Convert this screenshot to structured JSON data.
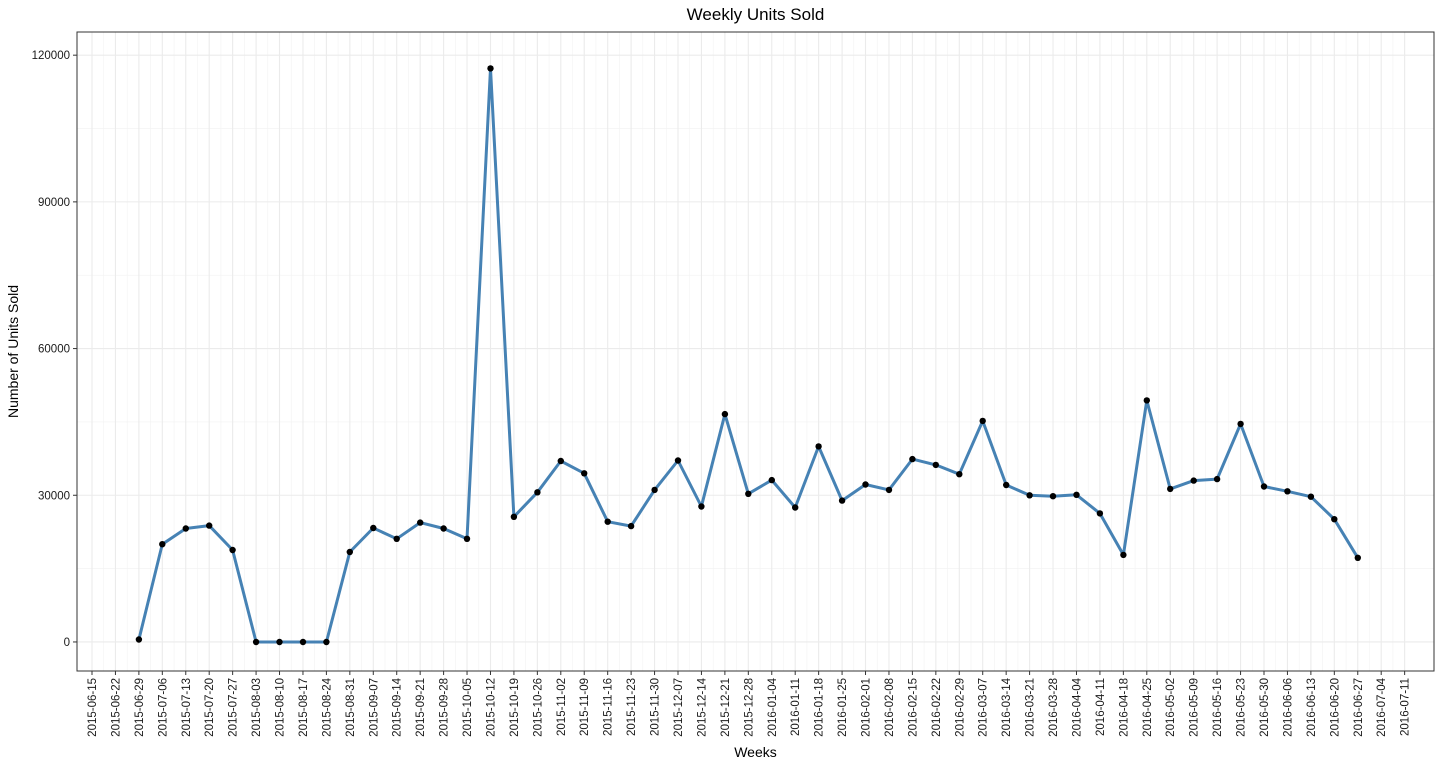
{
  "chart_data": {
    "type": "line",
    "title": "Weekly Units Sold",
    "xlabel": "Weeks",
    "ylabel": "Number of Units Sold",
    "ylim": [
      -5940,
      124740
    ],
    "y_ticks": [
      0,
      30000,
      60000,
      90000,
      120000
    ],
    "y_tick_labels": [
      "0",
      "30000",
      "60000",
      "90000",
      "120000"
    ],
    "x_ticks": [
      "2015-06-15",
      "2015-06-22",
      "2015-06-29",
      "2015-07-06",
      "2015-07-13",
      "2015-07-20",
      "2015-07-27",
      "2015-08-03",
      "2015-08-10",
      "2015-08-17",
      "2015-08-24",
      "2015-08-31",
      "2015-09-07",
      "2015-09-14",
      "2015-09-21",
      "2015-09-28",
      "2015-10-05",
      "2015-10-12",
      "2015-10-19",
      "2015-10-26",
      "2015-11-02",
      "2015-11-09",
      "2015-11-16",
      "2015-11-23",
      "2015-11-30",
      "2015-12-07",
      "2015-12-14",
      "2015-12-21",
      "2015-12-28",
      "2016-01-04",
      "2016-01-11",
      "2016-01-18",
      "2016-01-25",
      "2016-02-01",
      "2016-02-08",
      "2016-02-15",
      "2016-02-22",
      "2016-02-29",
      "2016-03-07",
      "2016-03-14",
      "2016-03-21",
      "2016-03-28",
      "2016-04-04",
      "2016-04-11",
      "2016-04-18",
      "2016-04-25",
      "2016-05-02",
      "2016-05-09",
      "2016-05-16",
      "2016-05-23",
      "2016-05-30",
      "2016-06-06",
      "2016-06-13",
      "2016-06-20",
      "2016-06-27",
      "2016-07-04",
      "2016-07-11"
    ],
    "grid": true,
    "line_color": "#4682b4",
    "point_color": "#000000",
    "series": [
      {
        "x": [
          "2015-06-29",
          "2015-07-06",
          "2015-07-13",
          "2015-07-20",
          "2015-07-27",
          "2015-08-03",
          "2015-08-10",
          "2015-08-17",
          "2015-08-24",
          "2015-08-31",
          "2015-09-07",
          "2015-09-14",
          "2015-09-21",
          "2015-09-28",
          "2015-10-05",
          "2015-10-12",
          "2015-10-19",
          "2015-10-26",
          "2015-11-02",
          "2015-11-09",
          "2015-11-16",
          "2015-11-23",
          "2015-11-30",
          "2015-12-07",
          "2015-12-14",
          "2015-12-21",
          "2015-12-28",
          "2016-01-04",
          "2016-01-11",
          "2016-01-18",
          "2016-01-25",
          "2016-02-01",
          "2016-02-08",
          "2016-02-15",
          "2016-02-22",
          "2016-02-29",
          "2016-03-07",
          "2016-03-14",
          "2016-03-21",
          "2016-03-28",
          "2016-04-04",
          "2016-04-11",
          "2016-04-18",
          "2016-04-25",
          "2016-05-02",
          "2016-05-09",
          "2016-05-16",
          "2016-05-23",
          "2016-05-30",
          "2016-06-06",
          "2016-06-13",
          "2016-06-20",
          "2016-06-27"
        ],
        "values": [
          500,
          20000,
          23200,
          23800,
          18800,
          0,
          0,
          0,
          0,
          18400,
          23300,
          21100,
          24400,
          23200,
          21100,
          117300,
          25600,
          30600,
          37000,
          34500,
          24600,
          23700,
          31100,
          37100,
          27700,
          46600,
          30300,
          33100,
          27500,
          40000,
          28900,
          32200,
          31100,
          37400,
          36200,
          34300,
          45200,
          32100,
          30000,
          29800,
          30100,
          26300,
          17800,
          49400,
          31300,
          33000,
          33300,
          44600,
          31800,
          30800,
          29700,
          25100,
          17200
        ]
      }
    ]
  }
}
